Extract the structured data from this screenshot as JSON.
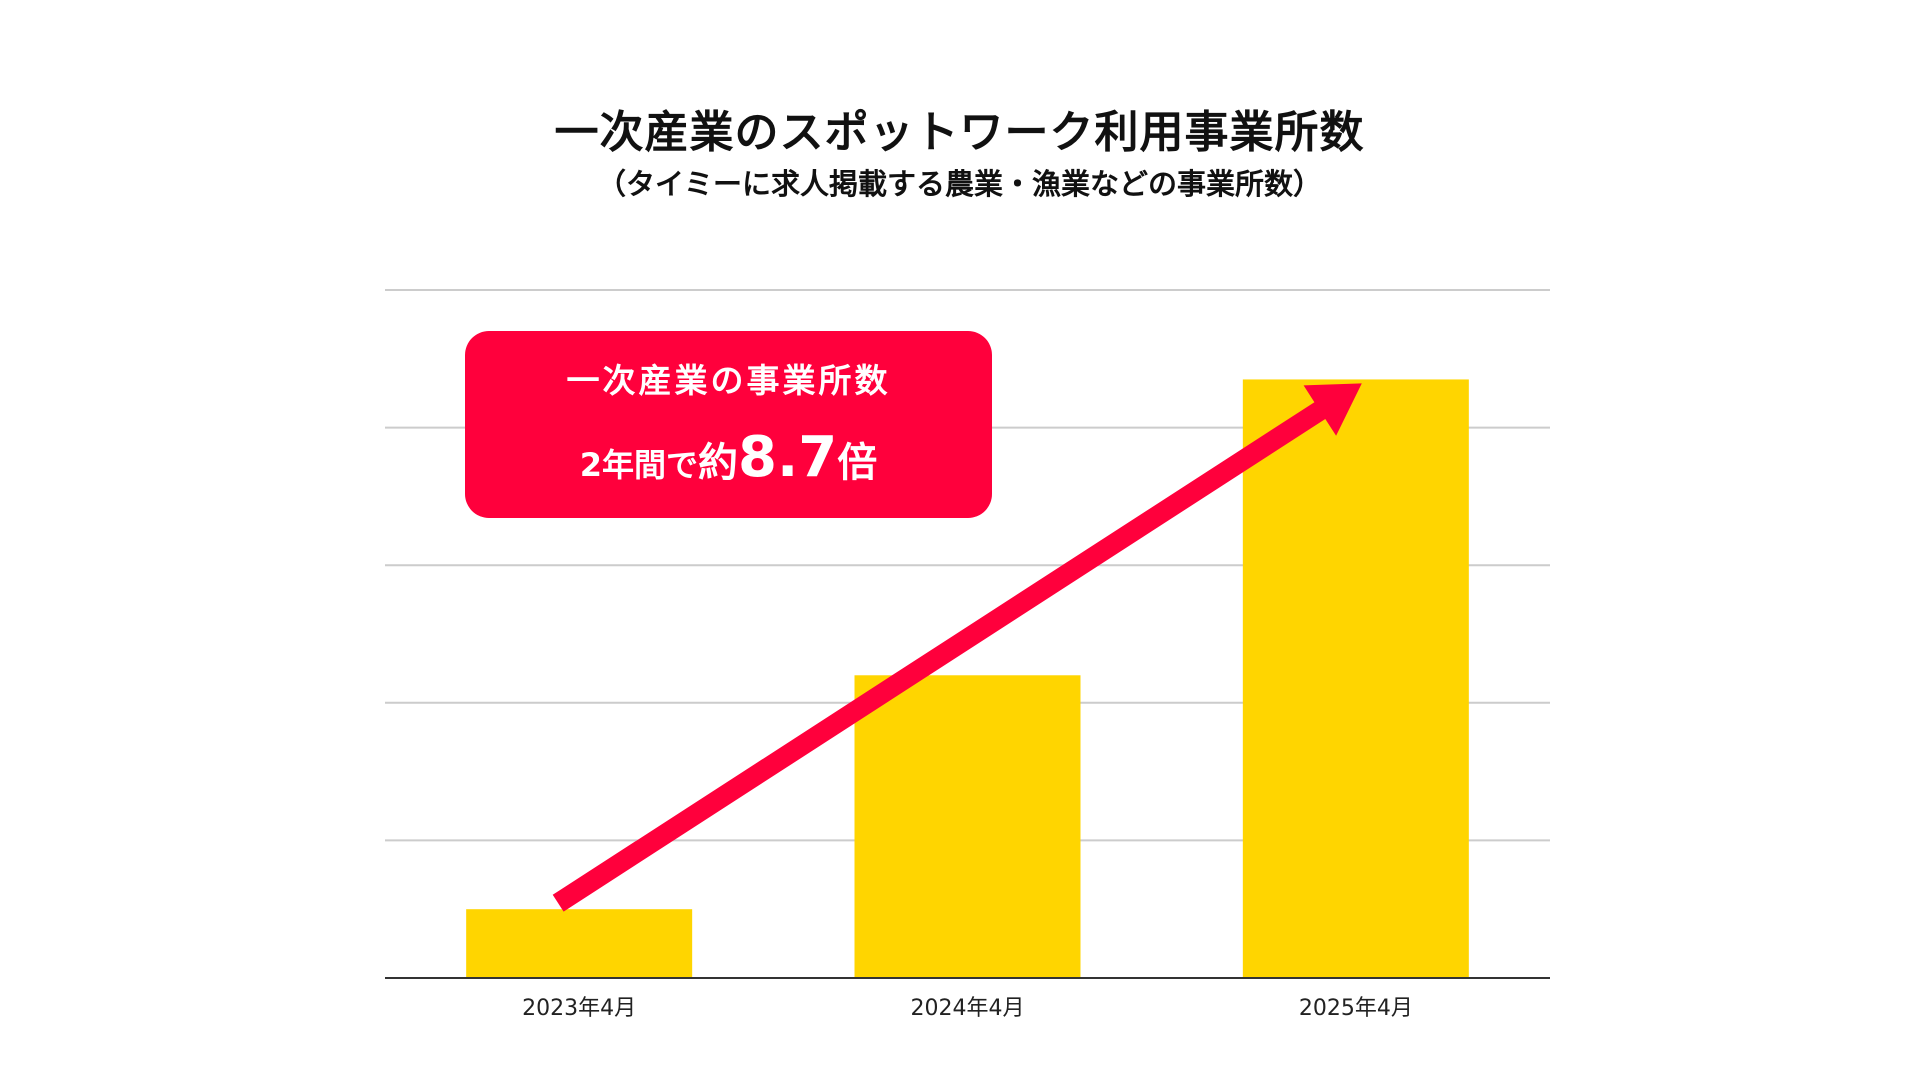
{
  "chart_data": {
    "type": "bar",
    "title": "一次産業のスポットワーク利用事業所数",
    "subtitle": "（タイミーに求人掲載する農業・漁業などの事業所数）",
    "categories": [
      "2023年4月",
      "2024年4月",
      "2025年4月"
    ],
    "values": [
      1,
      4.4,
      8.7
    ],
    "ylim": [
      0,
      10
    ],
    "grid": true,
    "bar_color": "#ffd500",
    "arrow_color": "#ff003c",
    "annotation": {
      "line1": "一次産業の事業所数",
      "line2_prefix": "2年間で",
      "line2_about": "約",
      "line2_value": "8.7",
      "line2_suffix": "倍"
    }
  }
}
